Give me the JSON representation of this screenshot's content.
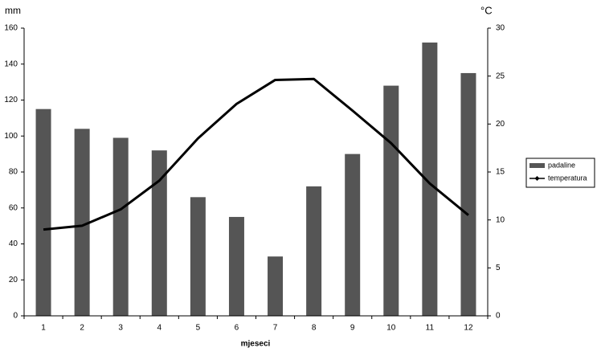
{
  "chart_data": {
    "type": "bar-line",
    "y_label": "mm",
    "y2_label": "°C",
    "x_label": "mjeseci",
    "categories": [
      "1",
      "2",
      "3",
      "4",
      "5",
      "6",
      "7",
      "8",
      "9",
      "10",
      "11",
      "12"
    ],
    "series": [
      {
        "name": "padaline",
        "type": "bar",
        "color": "#555555",
        "values": [
          115,
          104,
          99,
          92,
          66,
          55,
          33,
          72,
          90,
          128,
          152,
          135
        ]
      },
      {
        "name": "temperatura",
        "type": "line",
        "axis": "y2",
        "color": "#000000",
        "values": [
          9.0,
          9.4,
          11.1,
          14.1,
          18.5,
          22.1,
          24.6,
          24.7,
          21.4,
          18.0,
          13.8,
          10.5
        ]
      }
    ],
    "ylim": [
      0,
      160
    ],
    "yticks": [
      0,
      20,
      40,
      60,
      80,
      100,
      120,
      140,
      160
    ],
    "y2lim": [
      0,
      30
    ],
    "y2ticks": [
      0,
      5,
      10,
      15,
      20,
      25,
      30
    ],
    "grid": false,
    "legend": "right"
  }
}
